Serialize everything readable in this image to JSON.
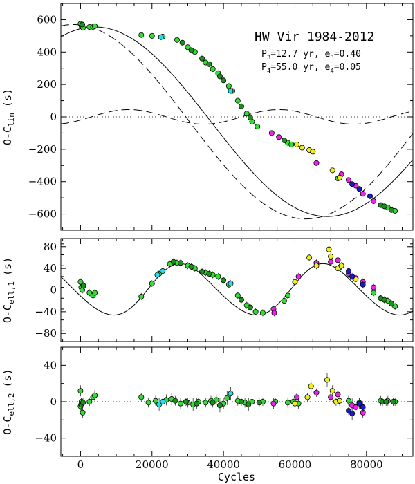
{
  "figure": {
    "title": "HW Vir  1984-2012",
    "param_line_1": {
      "p": "P",
      "p_sub": "3",
      "p_val": "=12.7  yr,  e",
      "e_sub": "3",
      "e_val": "=0.40"
    },
    "param_line_2": {
      "p": "P",
      "p_sub": "4",
      "p_val": "=55.0  yr,  e",
      "e_sub": "4",
      "e_val": "=0.05"
    },
    "xlabel": "Cycles"
  },
  "colors": {
    "green": "#33dd33",
    "dark_green": "#1c8f1c",
    "cyan": "#22ddee",
    "magenta": "#ee22ee",
    "yellow": "#eeee22",
    "blue": "#1a1acc"
  },
  "chart_data": [
    {
      "type": "scatter",
      "panel": "top",
      "ylabel_main": "O-C",
      "ylabel_sub": "lin",
      "ylabel_unit": "(s)",
      "xlim": [
        -5500,
        93000
      ],
      "ylim": [
        -700,
        700
      ],
      "xticks": [
        0,
        20000,
        40000,
        60000,
        80000
      ],
      "yticks": [
        -600,
        -400,
        -200,
        0,
        200,
        400,
        600
      ],
      "ytick_labels": [
        "−600",
        "−400",
        "−200",
        "0",
        "200",
        "400",
        "600"
      ],
      "model": "combined LTT fit (solid), single-component fits (dashed)",
      "series": [
        {
          "name": "green",
          "points": [
            [
              0,
              575
            ],
            [
              300,
              560
            ],
            [
              700,
              550
            ],
            [
              2500,
              555
            ],
            [
              3500,
              555
            ],
            [
              4000,
              560
            ],
            [
              17000,
              505
            ],
            [
              20000,
              500
            ],
            [
              23000,
              495
            ],
            [
              27000,
              475
            ],
            [
              30000,
              430
            ],
            [
              32000,
              400
            ],
            [
              35000,
              335
            ],
            [
              37000,
              295
            ],
            [
              38500,
              270
            ],
            [
              41500,
              190
            ],
            [
              42500,
              160
            ],
            [
              44000,
              100
            ],
            [
              46500,
              20
            ],
            [
              48000,
              -30
            ],
            [
              49500,
              -60
            ],
            [
              58000,
              -160
            ],
            [
              59000,
              -170
            ],
            [
              72000,
              -380
            ],
            [
              86000,
              -560
            ],
            [
              88000,
              -580
            ]
          ]
        },
        {
          "name": "dark_green",
          "points": [
            [
              500,
              570
            ],
            [
              28500,
              458
            ],
            [
              31000,
              412
            ],
            [
              34000,
              360
            ],
            [
              36000,
              325
            ],
            [
              39000,
              250
            ],
            [
              40000,
              225
            ],
            [
              45000,
              65
            ],
            [
              47500,
              -5
            ],
            [
              57000,
              -145
            ],
            [
              84000,
              -545
            ],
            [
              85000,
              -552
            ],
            [
              87000,
              -575
            ]
          ]
        },
        {
          "name": "cyan",
          "points": [
            [
              22500,
              492
            ],
            [
              42000,
              160
            ]
          ]
        },
        {
          "name": "magenta",
          "points": [
            [
              53500,
              -100
            ],
            [
              55500,
              -125
            ],
            [
              66000,
              -285
            ],
            [
              73000,
              -355
            ],
            [
              75000,
              -390
            ],
            [
              77000,
              -425
            ],
            [
              79000,
              -475
            ],
            [
              82000,
              -520
            ]
          ]
        },
        {
          "name": "yellow",
          "points": [
            [
              60500,
              -170
            ],
            [
              62000,
              -190
            ],
            [
              64000,
              -205
            ],
            [
              65000,
              -215
            ],
            [
              70500,
              -330
            ],
            [
              72500,
              -375
            ]
          ]
        },
        {
          "name": "blue",
          "points": [
            [
              76000,
              -415
            ],
            [
              78000,
              -445
            ],
            [
              81000,
              -490
            ]
          ]
        }
      ]
    },
    {
      "type": "scatter",
      "panel": "middle",
      "ylabel_main": "O-C",
      "ylabel_sub": "ell,1",
      "ylabel_unit": "(s)",
      "xlim": [
        -5500,
        93000
      ],
      "ylim": [
        -95,
        95
      ],
      "xticks": [
        0,
        20000,
        40000,
        60000,
        80000
      ],
      "yticks": [
        -80,
        -40,
        0,
        40,
        80
      ],
      "ytick_labels": [
        "−80",
        "−40",
        "0",
        "40",
        "80"
      ],
      "series": [
        {
          "name": "green",
          "points": [
            [
              0,
              15
            ],
            [
              200,
              5
            ],
            [
              500,
              0
            ],
            [
              2500,
              -5
            ],
            [
              3500,
              -10
            ],
            [
              4000,
              -5
            ],
            [
              17000,
              -12
            ],
            [
              20000,
              12
            ],
            [
              22000,
              30
            ],
            [
              25000,
              48
            ],
            [
              27000,
              50
            ],
            [
              30000,
              45
            ],
            [
              32000,
              40
            ],
            [
              35000,
              32
            ],
            [
              37000,
              28
            ],
            [
              38500,
              25
            ],
            [
              41500,
              10
            ],
            [
              44000,
              -10
            ],
            [
              46500,
              -28
            ],
            [
              49000,
              -40
            ],
            [
              51000,
              -42
            ],
            [
              57000,
              -20
            ],
            [
              58000,
              -10
            ],
            [
              72500,
              42
            ],
            [
              82000,
              -5
            ],
            [
              86000,
              -20
            ],
            [
              88000,
              -30
            ]
          ]
        },
        {
          "name": "dark_green",
          "points": [
            [
              800,
              8
            ],
            [
              26000,
              52
            ],
            [
              28000,
              50
            ],
            [
              31000,
              43
            ],
            [
              34000,
              34
            ],
            [
              36000,
              30
            ],
            [
              40000,
              18
            ],
            [
              45000,
              -18
            ],
            [
              47500,
              -32
            ],
            [
              84000,
              -15
            ],
            [
              85000,
              -18
            ],
            [
              87000,
              -25
            ]
          ]
        },
        {
          "name": "cyan",
          "points": [
            [
              21500,
              28
            ],
            [
              23000,
              35
            ],
            [
              42000,
              12
            ]
          ]
        },
        {
          "name": "magenta",
          "points": [
            [
              54000,
              -35
            ],
            [
              54200,
              -42
            ],
            [
              61000,
              25
            ],
            [
              66000,
              50
            ],
            [
              70000,
              52
            ],
            [
              72000,
              55
            ],
            [
              75000,
              30
            ],
            [
              77000,
              22
            ],
            [
              79000,
              15
            ],
            [
              82000,
              5
            ]
          ]
        },
        {
          "name": "yellow",
          "points": [
            [
              60000,
              15
            ],
            [
              64000,
              60
            ],
            [
              66000,
              45
            ],
            [
              69500,
              75
            ],
            [
              70000,
              62
            ],
            [
              72000,
              40
            ],
            [
              73000,
              45
            ],
            [
              76000,
              25
            ],
            [
              77000,
              20
            ]
          ]
        },
        {
          "name": "blue",
          "points": [
            [
              75000,
              35
            ],
            [
              76000,
              25
            ],
            [
              79000,
              10
            ]
          ]
        }
      ]
    },
    {
      "type": "scatter",
      "panel": "bottom",
      "ylabel_main": "O-C",
      "ylabel_sub": "ell,2",
      "ylabel_unit": "(s)",
      "xlim": [
        -5500,
        93000
      ],
      "ylim": [
        -60,
        60
      ],
      "xticks": [
        0,
        20000,
        40000,
        60000,
        80000
      ],
      "xtick_labels": [
        "0",
        "20000",
        "40000",
        "60000",
        "80000"
      ],
      "yticks": [
        -40,
        0,
        40
      ],
      "ytick_labels": [
        "−40",
        "0",
        "40"
      ],
      "series": [
        {
          "name": "green",
          "points": [
            [
              0,
              12
            ],
            [
              0,
              -5
            ],
            [
              300,
              0
            ],
            [
              600,
              -12
            ],
            [
              2500,
              0
            ],
            [
              3500,
              5
            ],
            [
              4000,
              7
            ],
            [
              17000,
              5
            ],
            [
              19000,
              -1
            ],
            [
              21000,
              1
            ],
            [
              24000,
              2
            ],
            [
              25500,
              3
            ],
            [
              28000,
              -2
            ],
            [
              30000,
              -1
            ],
            [
              31500,
              -3
            ],
            [
              33000,
              0
            ],
            [
              35000,
              -1
            ],
            [
              36500,
              1
            ],
            [
              38000,
              2
            ],
            [
              40000,
              -2
            ],
            [
              41000,
              4
            ],
            [
              44000,
              1
            ],
            [
              46000,
              -1
            ],
            [
              48000,
              0
            ],
            [
              51000,
              0
            ],
            [
              54500,
              0
            ],
            [
              58000,
              -1
            ],
            [
              59500,
              0
            ],
            [
              61000,
              -2
            ],
            [
              72000,
              0
            ],
            [
              75000,
              1
            ],
            [
              78000,
              -1
            ],
            [
              84000,
              1
            ],
            [
              86000,
              1
            ],
            [
              88000,
              0
            ]
          ]
        },
        {
          "name": "dark_green",
          "points": [
            [
              200,
              -3
            ],
            [
              700,
              -1
            ],
            [
              26500,
              1
            ],
            [
              29500,
              0
            ],
            [
              32500,
              -2
            ],
            [
              37000,
              -1
            ],
            [
              39000,
              -4
            ],
            [
              45000,
              0
            ],
            [
              47000,
              -3
            ],
            [
              50000,
              -1
            ],
            [
              84500,
              0
            ],
            [
              85500,
              0
            ],
            [
              87500,
              0
            ]
          ]
        },
        {
          "name": "cyan",
          "points": [
            [
              22000,
              -3
            ],
            [
              23000,
              0
            ],
            [
              42000,
              9
            ]
          ]
        },
        {
          "name": "magenta",
          "points": [
            [
              54000,
              -2
            ],
            [
              60500,
              5
            ],
            [
              66000,
              10
            ],
            [
              70000,
              5
            ],
            [
              72000,
              8
            ],
            [
              76000,
              -4
            ],
            [
              77000,
              -6
            ],
            [
              79000,
              -12
            ]
          ]
        },
        {
          "name": "yellow",
          "points": [
            [
              60000,
              -2
            ],
            [
              63500,
              5
            ],
            [
              64500,
              17
            ],
            [
              69000,
              24
            ],
            [
              70500,
              12
            ],
            [
              71500,
              0
            ],
            [
              72500,
              1
            ]
          ]
        },
        {
          "name": "blue",
          "points": [
            [
              75000,
              -10
            ],
            [
              76000,
              -13
            ],
            [
              78000,
              -2
            ],
            [
              79000,
              -6
            ]
          ]
        }
      ]
    }
  ]
}
